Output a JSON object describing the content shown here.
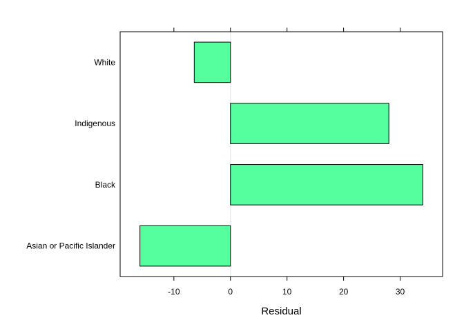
{
  "chart_data": {
    "type": "bar",
    "orientation": "horizontal",
    "categories": [
      "Asian or Pacific Islander",
      "Black",
      "Indigenous",
      "White"
    ],
    "values": [
      -16,
      34,
      28,
      -6.4
    ],
    "xlabel": "Residual",
    "ylabel": "",
    "xlim": [
      -19.5,
      37.5
    ],
    "xticks": [
      -10,
      0,
      10,
      20,
      30
    ],
    "xtick_labels": [
      "-10",
      "0",
      "10",
      "20",
      "30"
    ],
    "reference_line": 0,
    "grid": false,
    "legend": "none",
    "colors": {
      "bar_fill": "#55ff9e",
      "bar_stroke": "#000000",
      "reference_line": "#e6e6e6",
      "frame": "#000000"
    }
  }
}
